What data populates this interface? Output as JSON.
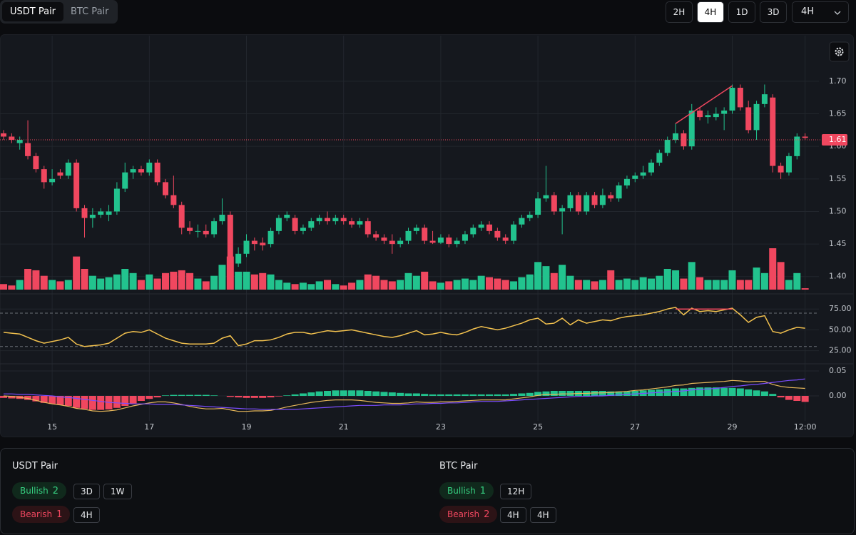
{
  "tabs": [
    "USDT Pair",
    "BTC Pair"
  ],
  "active_tab": 0,
  "timeframes": [
    "2H",
    "4H",
    "1D",
    "3D"
  ],
  "active_timeframe": 1,
  "dropdown": "4H",
  "chart_data": [
    {
      "type": "candlestick",
      "up_color": "#22c38e",
      "down_color": "#f0475f",
      "grid": true,
      "ylim": [
        1.38,
        1.77
      ],
      "yticks": [
        {
          "value": 1.4,
          "label": "1.40"
        },
        1.45,
        {
          "value": 1.5,
          "label": "1.50"
        },
        1.55,
        {
          "value": 1.6,
          "label": "1.60"
        },
        1.65,
        {
          "value": 1.7,
          "label": "1.70"
        }
      ],
      "xticks": [
        {
          "value": 6,
          "label": "15"
        },
        {
          "value": 18,
          "label": "17"
        },
        {
          "value": 30,
          "label": "19"
        },
        {
          "value": 42,
          "label": "21"
        },
        {
          "value": 54,
          "label": "23"
        },
        {
          "value": 66,
          "label": "25"
        },
        {
          "value": 78,
          "label": "27"
        },
        {
          "value": 90,
          "label": "29"
        },
        {
          "value": 99,
          "label": "12:00"
        }
      ],
      "last_price": 1.61,
      "divergence": {
        "from": [
          83,
          1.635
        ],
        "to": [
          90,
          1.693
        ]
      },
      "ohlc": [
        [
          1.62,
          1.625,
          1.61,
          1.615
        ],
        [
          1.615,
          1.62,
          1.605,
          1.61
        ],
        [
          1.605,
          1.615,
          1.595,
          1.61
        ],
        [
          1.605,
          1.64,
          1.58,
          1.585
        ],
        [
          1.585,
          1.59,
          1.56,
          1.565
        ],
        [
          1.565,
          1.57,
          1.535,
          1.545
        ],
        [
          1.545,
          1.565,
          1.54,
          1.55
        ],
        [
          1.56,
          1.565,
          1.55,
          1.555
        ],
        [
          1.555,
          1.58,
          1.55,
          1.575
        ],
        [
          1.575,
          1.58,
          1.5,
          1.505
        ],
        [
          1.505,
          1.51,
          1.46,
          1.49
        ],
        [
          1.49,
          1.505,
          1.475,
          1.495
        ],
        [
          1.495,
          1.505,
          1.49,
          1.5
        ],
        [
          1.495,
          1.51,
          1.485,
          1.5
        ],
        [
          1.5,
          1.545,
          1.495,
          1.535
        ],
        [
          1.535,
          1.575,
          1.53,
          1.56
        ],
        [
          1.56,
          1.57,
          1.55,
          1.565
        ],
        [
          1.565,
          1.57,
          1.555,
          1.56
        ],
        [
          1.56,
          1.58,
          1.555,
          1.575
        ],
        [
          1.575,
          1.58,
          1.54,
          1.545
        ],
        [
          1.545,
          1.55,
          1.52,
          1.525
        ],
        [
          1.525,
          1.555,
          1.505,
          1.51
        ],
        [
          1.51,
          1.515,
          1.465,
          1.475
        ],
        [
          1.475,
          1.485,
          1.465,
          1.47
        ],
        [
          1.47,
          1.48,
          1.46,
          1.47
        ],
        [
          1.47,
          1.48,
          1.46,
          1.465
        ],
        [
          1.465,
          1.49,
          1.46,
          1.485
        ],
        [
          1.485,
          1.52,
          1.48,
          1.495
        ],
        [
          1.495,
          1.5,
          1.41,
          1.42
        ],
        [
          1.42,
          1.445,
          1.415,
          1.435
        ],
        [
          1.435,
          1.465,
          1.43,
          1.455
        ],
        [
          1.455,
          1.46,
          1.44,
          1.45
        ],
        [
          1.452,
          1.46,
          1.44,
          1.448
        ],
        [
          1.45,
          1.475,
          1.445,
          1.47
        ],
        [
          1.47,
          1.495,
          1.465,
          1.49
        ],
        [
          1.49,
          1.5,
          1.485,
          1.495
        ],
        [
          1.49,
          1.495,
          1.465,
          1.47
        ],
        [
          1.47,
          1.48,
          1.465,
          1.475
        ],
        [
          1.475,
          1.49,
          1.47,
          1.485
        ],
        [
          1.485,
          1.495,
          1.48,
          1.49
        ],
        [
          1.49,
          1.5,
          1.48,
          1.485
        ],
        [
          1.485,
          1.495,
          1.48,
          1.49
        ],
        [
          1.49,
          1.495,
          1.48,
          1.485
        ],
        [
          1.485,
          1.49,
          1.475,
          1.48
        ],
        [
          1.48,
          1.49,
          1.475,
          1.485
        ],
        [
          1.485,
          1.49,
          1.46,
          1.465
        ],
        [
          1.465,
          1.47,
          1.455,
          1.46
        ],
        [
          1.46,
          1.465,
          1.45,
          1.455
        ],
        [
          1.455,
          1.465,
          1.435,
          1.45
        ],
        [
          1.45,
          1.46,
          1.445,
          1.455
        ],
        [
          1.455,
          1.475,
          1.45,
          1.47
        ],
        [
          1.47,
          1.48,
          1.465,
          1.475
        ],
        [
          1.475,
          1.48,
          1.45,
          1.455
        ],
        [
          1.455,
          1.47,
          1.45,
          1.452
        ],
        [
          1.452,
          1.465,
          1.45,
          1.46
        ],
        [
          1.46,
          1.465,
          1.445,
          1.45
        ],
        [
          1.45,
          1.46,
          1.445,
          1.455
        ],
        [
          1.455,
          1.47,
          1.45,
          1.465
        ],
        [
          1.465,
          1.48,
          1.46,
          1.475
        ],
        [
          1.475,
          1.485,
          1.47,
          1.48
        ],
        [
          1.48,
          1.485,
          1.465,
          1.47
        ],
        [
          1.47,
          1.475,
          1.455,
          1.46
        ],
        [
          1.46,
          1.465,
          1.45,
          1.455
        ],
        [
          1.455,
          1.485,
          1.45,
          1.48
        ],
        [
          1.48,
          1.495,
          1.475,
          1.49
        ],
        [
          1.49,
          1.5,
          1.485,
          1.495
        ],
        [
          1.495,
          1.53,
          1.49,
          1.52
        ],
        [
          1.52,
          1.57,
          1.515,
          1.525
        ],
        [
          1.525,
          1.53,
          1.495,
          1.5
        ],
        [
          1.5,
          1.51,
          1.465,
          1.505
        ],
        [
          1.505,
          1.53,
          1.5,
          1.525
        ],
        [
          1.525,
          1.53,
          1.495,
          1.5
        ],
        [
          1.5,
          1.53,
          1.495,
          1.525
        ],
        [
          1.525,
          1.53,
          1.505,
          1.51
        ],
        [
          1.51,
          1.535,
          1.505,
          1.525
        ],
        [
          1.525,
          1.53,
          1.515,
          1.52
        ],
        [
          1.52,
          1.545,
          1.515,
          1.54
        ],
        [
          1.54,
          1.555,
          1.535,
          1.55
        ],
        [
          1.55,
          1.56,
          1.545,
          1.555
        ],
        [
          1.555,
          1.57,
          1.55,
          1.56
        ],
        [
          1.56,
          1.58,
          1.555,
          1.575
        ],
        [
          1.575,
          1.595,
          1.57,
          1.59
        ],
        [
          1.59,
          1.615,
          1.585,
          1.61
        ],
        [
          1.61,
          1.635,
          1.605,
          1.62
        ],
        [
          1.62,
          1.625,
          1.595,
          1.6
        ],
        [
          1.6,
          1.665,
          1.595,
          1.655
        ],
        [
          1.655,
          1.66,
          1.64,
          1.645
        ],
        [
          1.645,
          1.655,
          1.635,
          1.648
        ],
        [
          1.645,
          1.66,
          1.64,
          1.65
        ],
        [
          1.65,
          1.66,
          1.625,
          1.655
        ],
        [
          1.655,
          1.695,
          1.65,
          1.69
        ],
        [
          1.69,
          1.695,
          1.655,
          1.66
        ],
        [
          1.66,
          1.67,
          1.62,
          1.625
        ],
        [
          1.625,
          1.67,
          1.61,
          1.665
        ],
        [
          1.665,
          1.695,
          1.66,
          1.68
        ],
        [
          1.675,
          1.68,
          1.56,
          1.57
        ],
        [
          1.57,
          1.575,
          1.55,
          1.56
        ],
        [
          1.56,
          1.59,
          1.555,
          1.585
        ],
        [
          1.585,
          1.62,
          1.58,
          1.615
        ],
        [
          1.615,
          1.62,
          1.61,
          1.613
        ]
      ],
      "volume": [
        8,
        6,
        14,
        30,
        28,
        20,
        14,
        12,
        14,
        48,
        30,
        20,
        16,
        18,
        22,
        30,
        24,
        14,
        22,
        16,
        24,
        26,
        28,
        24,
        16,
        12,
        20,
        36,
        48,
        26,
        26,
        22,
        24,
        22,
        14,
        10,
        8,
        10,
        8,
        12,
        14,
        8,
        6,
        10,
        14,
        22,
        20,
        14,
        12,
        14,
        24,
        20,
        26,
        12,
        10,
        12,
        14,
        16,
        14,
        20,
        18,
        16,
        14,
        12,
        18,
        22,
        40,
        34,
        24,
        36,
        20,
        14,
        14,
        12,
        14,
        28,
        14,
        16,
        14,
        18,
        16,
        20,
        30,
        28,
        16,
        40,
        18,
        14,
        14,
        14,
        28,
        14,
        14,
        32,
        24,
        60,
        40,
        14,
        24,
        2
      ]
    },
    {
      "type": "line",
      "color": "#f2c14e",
      "ylim": [
        11,
        88
      ],
      "yticks": [
        {
          "value": 25,
          "label": "25.00"
        },
        {
          "value": 50,
          "label": "50.00"
        },
        {
          "value": 75,
          "label": "75.00"
        }
      ],
      "bands": [
        30,
        70
      ],
      "divergence": {
        "from": [
          83,
          75
        ],
        "to": [
          90,
          75
        ]
      },
      "values": [
        47,
        46,
        45,
        41,
        37,
        34,
        36,
        38,
        41,
        33,
        30,
        31,
        32,
        34,
        40,
        46,
        48,
        47,
        50,
        45,
        40,
        37,
        34,
        33,
        33,
        33,
        34,
        40,
        43,
        31,
        33,
        37,
        37,
        38,
        41,
        45,
        47,
        47,
        45,
        47,
        49,
        48,
        49,
        50,
        48,
        46,
        44,
        42,
        41,
        43,
        46,
        49,
        44,
        45,
        47,
        45,
        44,
        47,
        51,
        54,
        52,
        50,
        52,
        55,
        58,
        62,
        64,
        57,
        58,
        64,
        56,
        62,
        58,
        60,
        62,
        61,
        64,
        66,
        67,
        68,
        70,
        72,
        75,
        77,
        68,
        76,
        72,
        73,
        72,
        74,
        76,
        68,
        59,
        65,
        67,
        48,
        46,
        50,
        53,
        52
      ]
    },
    {
      "type": "macd",
      "up_color": "#22c38e",
      "down_color": "#f0475f",
      "ylim": [
        -0.04,
        0.06
      ],
      "yticks": [
        {
          "value": 0,
          "label": "0.00"
        },
        0.05
      ],
      "histogram": [
        -0.004,
        -0.005,
        -0.006,
        -0.008,
        -0.011,
        -0.014,
        -0.016,
        -0.018,
        -0.02,
        -0.024,
        -0.026,
        -0.028,
        -0.028,
        -0.027,
        -0.024,
        -0.02,
        -0.015,
        -0.01,
        -0.006,
        -0.003,
        0.001,
        0.002,
        0.002,
        0.002,
        0.002,
        0.002,
        0.001,
        0,
        -0.002,
        -0.003,
        -0.004,
        -0.004,
        -0.004,
        -0.003,
        -0.001,
        0.001,
        0.003,
        0.005,
        0.007,
        0.009,
        0.01,
        0.011,
        0.011,
        0.011,
        0.011,
        0.01,
        0.009,
        0.008,
        0.007,
        0.006,
        0.005,
        0.005,
        0.004,
        0.003,
        0.003,
        0.003,
        0.003,
        0.003,
        0.003,
        0.003,
        0.003,
        0.003,
        0.003,
        0.004,
        0.005,
        0.006,
        0.008,
        0.009,
        0.01,
        0.01,
        0.01,
        0.01,
        0.01,
        0.01,
        0.01,
        0.009,
        0.009,
        0.009,
        0.01,
        0.011,
        0.012,
        0.013,
        0.014,
        0.015,
        0.015,
        0.016,
        0.017,
        0.017,
        0.017,
        0.016,
        0.016,
        0.015,
        0.013,
        0.011,
        0.009,
        0.004,
        -0.003,
        -0.008,
        -0.01,
        -0.012
      ],
      "series": [
        {
          "color": "#e8b85a",
          "values": [
            0,
            -0.001,
            -0.003,
            -0.005,
            -0.009,
            -0.013,
            -0.016,
            -0.018,
            -0.021,
            -0.025,
            -0.027,
            -0.03,
            -0.031,
            -0.03,
            -0.028,
            -0.024,
            -0.02,
            -0.017,
            -0.014,
            -0.012,
            -0.012,
            -0.014,
            -0.017,
            -0.021,
            -0.024,
            -0.026,
            -0.026,
            -0.025,
            -0.028,
            -0.031,
            -0.031,
            -0.03,
            -0.03,
            -0.029,
            -0.026,
            -0.022,
            -0.019,
            -0.016,
            -0.013,
            -0.011,
            -0.009,
            -0.008,
            -0.008,
            -0.008,
            -0.009,
            -0.011,
            -0.013,
            -0.014,
            -0.015,
            -0.015,
            -0.014,
            -0.012,
            -0.013,
            -0.013,
            -0.012,
            -0.012,
            -0.011,
            -0.01,
            -0.009,
            -0.008,
            -0.008,
            -0.008,
            -0.008,
            -0.006,
            -0.004,
            -0.002,
            0.001,
            0.003,
            0.003,
            0.004,
            0.004,
            0.005,
            0.005,
            0.006,
            0.006,
            0.007,
            0.008,
            0.009,
            0.011,
            0.012,
            0.014,
            0.016,
            0.018,
            0.021,
            0.022,
            0.025,
            0.026,
            0.027,
            0.028,
            0.029,
            0.031,
            0.03,
            0.028,
            0.029,
            0.029,
            0.023,
            0.019,
            0.017,
            0.016,
            0.015
          ]
        },
        {
          "color": "#7c4dff",
          "values": [
            0.004,
            0.004,
            0.003,
            0.003,
            0.002,
            0.001,
            0,
            -0.002,
            -0.003,
            -0.005,
            -0.007,
            -0.009,
            -0.011,
            -0.013,
            -0.014,
            -0.015,
            -0.016,
            -0.016,
            -0.016,
            -0.017,
            -0.017,
            -0.017,
            -0.018,
            -0.019,
            -0.02,
            -0.021,
            -0.022,
            -0.023,
            -0.024,
            -0.025,
            -0.026,
            -0.026,
            -0.027,
            -0.027,
            -0.027,
            -0.027,
            -0.027,
            -0.026,
            -0.025,
            -0.024,
            -0.023,
            -0.022,
            -0.021,
            -0.02,
            -0.019,
            -0.019,
            -0.019,
            -0.018,
            -0.018,
            -0.018,
            -0.017,
            -0.016,
            -0.016,
            -0.015,
            -0.015,
            -0.014,
            -0.014,
            -0.013,
            -0.012,
            -0.011,
            -0.011,
            -0.011,
            -0.01,
            -0.009,
            -0.008,
            -0.007,
            -0.006,
            -0.005,
            -0.004,
            -0.003,
            -0.002,
            -0.001,
            -0.001,
            0,
            0,
            0.001,
            0.002,
            0.003,
            0.004,
            0.005,
            0.006,
            0.007,
            0.008,
            0.009,
            0.01,
            0.012,
            0.013,
            0.014,
            0.015,
            0.017,
            0.019,
            0.02,
            0.022,
            0.023,
            0.025,
            0.027,
            0.029,
            0.031,
            0.032,
            0.034
          ]
        }
      ]
    }
  ],
  "summary": [
    {
      "title": "USDT Pair",
      "rows": [
        {
          "label": "Bullish",
          "count": 2,
          "tags": [
            "3D",
            "1W"
          ]
        },
        {
          "label": "Bearish",
          "count": 1,
          "tags": [
            "4H"
          ]
        }
      ]
    },
    {
      "title": "BTC Pair",
      "rows": [
        {
          "label": "Bullish",
          "count": 1,
          "tags": [
            "12H"
          ]
        },
        {
          "label": "Bearish",
          "count": 2,
          "tags": [
            "4H",
            "4H"
          ]
        }
      ]
    }
  ]
}
